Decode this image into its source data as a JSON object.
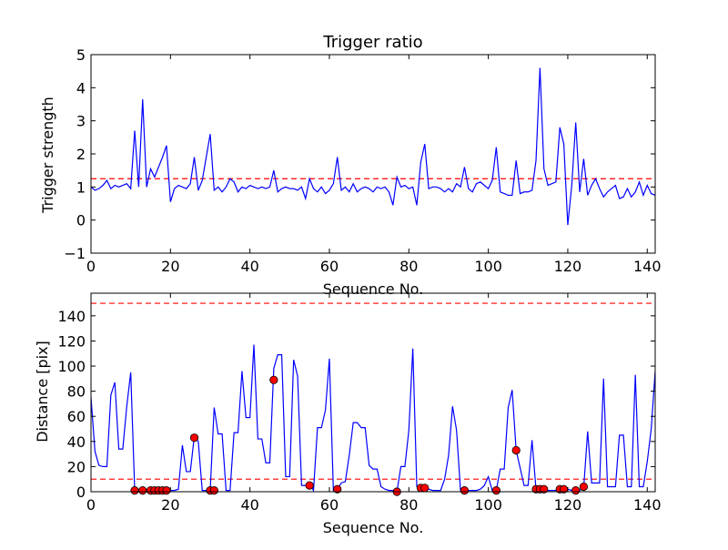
{
  "chart_data": [
    {
      "type": "line",
      "title": "Trigger ratio",
      "xlabel": "Sequence No.",
      "ylabel": "Trigger strength",
      "xlim": [
        0,
        142
      ],
      "ylim": [
        -1,
        5
      ],
      "xticks": [
        "0",
        "20",
        "40",
        "60",
        "80",
        "100",
        "120",
        "140"
      ],
      "yticks": [
        "−1",
        "0",
        "1",
        "2",
        "3",
        "4",
        "5"
      ],
      "series": [
        {
          "color": "#0000ff",
          "x": [
            0,
            1,
            2,
            3,
            4,
            5,
            6,
            7,
            8,
            9,
            10,
            11,
            12,
            13,
            14,
            15,
            16,
            17,
            18,
            19,
            20,
            21,
            22,
            23,
            24,
            25,
            26,
            27,
            28,
            29,
            30,
            31,
            32,
            33,
            34,
            35,
            36,
            37,
            38,
            39,
            40,
            41,
            42,
            43,
            44,
            45,
            46,
            47,
            48,
            49,
            50,
            51,
            52,
            53,
            54,
            55,
            56,
            57,
            58,
            59,
            60,
            61,
            62,
            63,
            64,
            65,
            66,
            67,
            68,
            69,
            70,
            71,
            72,
            73,
            74,
            75,
            76,
            77,
            78,
            79,
            80,
            81,
            82,
            83,
            84,
            85,
            86,
            87,
            88,
            89,
            90,
            91,
            92,
            93,
            94,
            95,
            96,
            97,
            98,
            99,
            100,
            101,
            102,
            103,
            104,
            105,
            106,
            107,
            108,
            109,
            110,
            111,
            112,
            113,
            114,
            115,
            116,
            117,
            118,
            119,
            120,
            121,
            122,
            123,
            124,
            125,
            126,
            127,
            128,
            129,
            130,
            131,
            132,
            133,
            134,
            135,
            136,
            137,
            138,
            139,
            140,
            141,
            142
          ],
          "values": [
            1.0,
            0.9,
            0.95,
            1.05,
            1.2,
            0.95,
            1.05,
            1.0,
            1.05,
            1.1,
            0.95,
            2.7,
            1.0,
            3.65,
            1.0,
            1.55,
            1.3,
            1.6,
            1.9,
            2.25,
            0.55,
            0.95,
            1.05,
            1.0,
            0.95,
            1.1,
            1.9,
            0.9,
            1.2,
            1.9,
            2.6,
            0.9,
            1.0,
            0.85,
            1.0,
            1.25,
            1.15,
            0.85,
            1.0,
            0.95,
            1.05,
            1.0,
            0.95,
            1.0,
            0.95,
            1.0,
            1.5,
            0.85,
            0.95,
            1.0,
            0.95,
            0.95,
            0.9,
            1.0,
            0.65,
            1.25,
            0.95,
            0.85,
            1.0,
            0.8,
            0.9,
            1.1,
            1.9,
            0.9,
            1.0,
            0.85,
            1.1,
            0.85,
            0.95,
            1.0,
            0.95,
            0.85,
            1.0,
            0.95,
            1.0,
            0.85,
            0.45,
            1.3,
            1.0,
            1.05,
            0.95,
            1.0,
            0.45,
            1.75,
            2.3,
            0.95,
            1.0,
            1.0,
            0.95,
            0.85,
            0.95,
            0.85,
            1.1,
            1.0,
            1.6,
            0.95,
            0.85,
            1.1,
            1.15,
            1.05,
            0.95,
            1.2,
            2.2,
            0.85,
            0.8,
            0.75,
            0.75,
            1.8,
            0.8,
            0.85,
            0.85,
            0.9,
            1.8,
            4.6,
            1.55,
            1.05,
            1.1,
            1.15,
            2.8,
            2.3,
            -0.15,
            1.05,
            2.95,
            0.85,
            1.85,
            0.75,
            1.05,
            1.25,
            0.95,
            0.7,
            0.85,
            0.95,
            1.05,
            0.65,
            0.7,
            0.95,
            0.7,
            0.85,
            1.15,
            0.75,
            1.05,
            0.8,
            0.75
          ]
        }
      ],
      "threshold": 1.25,
      "threshold_color": "#ff0000"
    },
    {
      "type": "line",
      "title": "",
      "xlabel": "Sequence No.",
      "ylabel": "Distance [pix]",
      "xlim": [
        0,
        142
      ],
      "ylim": [
        0,
        158
      ],
      "xticks": [
        "0",
        "20",
        "40",
        "60",
        "80",
        "100",
        "120",
        "140"
      ],
      "yticks": [
        "0",
        "20",
        "40",
        "60",
        "80",
        "100",
        "120",
        "140"
      ],
      "series": [
        {
          "color": "#0000ff",
          "x": [
            0,
            1,
            2,
            3,
            4,
            5,
            6,
            7,
            8,
            9,
            10,
            11,
            12,
            13,
            14,
            15,
            16,
            17,
            18,
            19,
            20,
            21,
            22,
            23,
            24,
            25,
            26,
            27,
            28,
            29,
            30,
            31,
            32,
            33,
            34,
            35,
            36,
            37,
            38,
            39,
            40,
            41,
            42,
            43,
            44,
            45,
            46,
            47,
            48,
            49,
            50,
            51,
            52,
            53,
            54,
            55,
            56,
            57,
            58,
            59,
            60,
            61,
            62,
            63,
            64,
            65,
            66,
            67,
            68,
            69,
            70,
            71,
            72,
            73,
            74,
            75,
            76,
            77,
            78,
            79,
            80,
            81,
            82,
            83,
            84,
            85,
            86,
            87,
            88,
            89,
            90,
            91,
            92,
            93,
            94,
            95,
            96,
            97,
            98,
            99,
            100,
            101,
            102,
            103,
            104,
            105,
            106,
            107,
            108,
            109,
            110,
            111,
            112,
            113,
            114,
            115,
            116,
            117,
            118,
            119,
            120,
            121,
            122,
            123,
            124,
            125,
            126,
            127,
            128,
            129,
            130,
            131,
            132,
            133,
            134,
            135,
            136,
            137,
            138,
            139,
            140,
            141,
            142
          ],
          "values": [
            75,
            32,
            21,
            20,
            20,
            77,
            87,
            34,
            34,
            68,
            95,
            1,
            1,
            1,
            1,
            1,
            1,
            1,
            1,
            1,
            1,
            1,
            2,
            37,
            16,
            16,
            44,
            40,
            1,
            1,
            1,
            67,
            46,
            46,
            1,
            1,
            47,
            47,
            96,
            59,
            59,
            117,
            42,
            42,
            23,
            23,
            98,
            109,
            109,
            12,
            12,
            105,
            92,
            5,
            5,
            6,
            1,
            51,
            51,
            65,
            106,
            1,
            2,
            7,
            8,
            29,
            55,
            55,
            51,
            51,
            21,
            18,
            18,
            4,
            2,
            1,
            1,
            0,
            20,
            20,
            49,
            114,
            4,
            3,
            3,
            2,
            1,
            1,
            1,
            10,
            29,
            68,
            49,
            1,
            1,
            1,
            1,
            1,
            2,
            5,
            12,
            1,
            1,
            18,
            18,
            67,
            81,
            33,
            19,
            5,
            5,
            41,
            2,
            2,
            2,
            1,
            1,
            1,
            2,
            2,
            2,
            1,
            1,
            1,
            3,
            48,
            7,
            7,
            7,
            90,
            4,
            4,
            4,
            45,
            45,
            4,
            4,
            93,
            4,
            4,
            24,
            50,
            96
          ]
        }
      ],
      "markers": {
        "color": "#ff0000",
        "x": [
          11,
          13,
          15,
          16,
          17,
          18,
          19,
          26,
          30,
          31,
          46,
          55,
          62,
          77,
          83,
          84,
          94,
          102,
          107,
          112,
          113,
          114,
          118,
          119,
          122,
          124
        ],
        "values": [
          1,
          1,
          1,
          1,
          1,
          1,
          1,
          43,
          1,
          1,
          89,
          5,
          2,
          0,
          3,
          3,
          1,
          1,
          33,
          2,
          2,
          2,
          2,
          2,
          1,
          4
        ]
      },
      "thresholds": [
        150,
        10
      ],
      "threshold_color": "#ff0000"
    }
  ]
}
